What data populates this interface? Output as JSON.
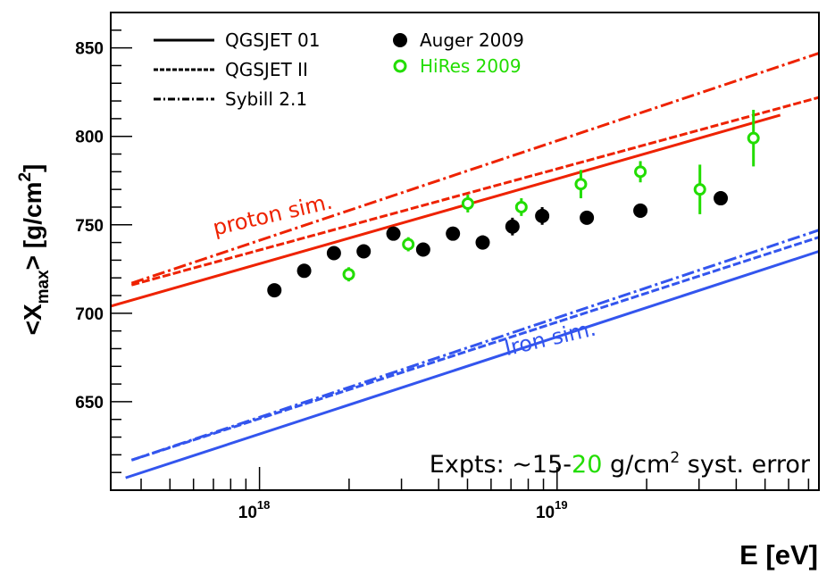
{
  "chart_data": {
    "type": "scatter",
    "title": "",
    "xlabel": "E [eV]",
    "ylabel_main": "<X",
    "ylabel_sub": "max",
    "ylabel_tail": "> [g/cm",
    "ylabel_sup": "2",
    "ylabel_end": "]",
    "x_scale": "log",
    "xlim_log10": [
      17.5,
      19.88
    ],
    "ylim": [
      600,
      870
    ],
    "y_ticks": [
      650,
      700,
      750,
      800,
      850
    ],
    "y_tick_labels": [
      "650",
      "700",
      "750",
      "800",
      "850"
    ],
    "x_major_ticks_log10": [
      18,
      19
    ],
    "x_tick_labels": [
      {
        "base": "10",
        "exp": "18"
      },
      {
        "base": "10",
        "exp": "19"
      }
    ],
    "grid": false,
    "legend": {
      "position": "top-left",
      "items": [
        {
          "label": "QGSJET 01",
          "style": "solid",
          "color": "#000000"
        },
        {
          "label": "QGSJET II",
          "style": "dashed",
          "color": "#000000"
        },
        {
          "label": "Sybill 2.1",
          "style": "dashdot",
          "color": "#000000"
        },
        {
          "label": "Auger 2009",
          "style": "filled-circle",
          "color": "#000000"
        },
        {
          "label": "HiRes 2009",
          "style": "open-circle",
          "color": "#22dd00"
        }
      ]
    },
    "lines": [
      {
        "name": "proton QGSJET 01",
        "group": "proton",
        "style": "solid",
        "color": "#ee2200",
        "x_log10": [
          17.5,
          19.75
        ],
        "y": [
          704,
          812
        ]
      },
      {
        "name": "proton QGSJET II",
        "group": "proton",
        "style": "dashed",
        "color": "#ee2200",
        "x_log10": [
          17.57,
          19.88
        ],
        "y": [
          716,
          822
        ]
      },
      {
        "name": "proton Sybill 2.1",
        "group": "proton",
        "style": "dashdot",
        "color": "#ee2200",
        "x_log10": [
          17.57,
          19.88
        ],
        "y": [
          717,
          847
        ]
      },
      {
        "name": "iron QGSJET 01",
        "group": "iron",
        "style": "solid",
        "color": "#3355ee",
        "x_log10": [
          17.55,
          19.88
        ],
        "y": [
          607,
          735
        ]
      },
      {
        "name": "iron QGSJET II",
        "group": "iron",
        "style": "dashed",
        "color": "#3355ee",
        "x_log10": [
          17.57,
          19.88
        ],
        "y": [
          617,
          743
        ]
      },
      {
        "name": "iron Sybill 2.1",
        "group": "iron",
        "style": "dashdot",
        "color": "#3355ee",
        "x_log10": [
          17.57,
          19.88
        ],
        "y": [
          617,
          747
        ]
      }
    ],
    "series": [
      {
        "name": "Auger 2009",
        "marker": "filled-circle",
        "color": "#000000",
        "x_log10": [
          18.05,
          18.15,
          18.25,
          18.35,
          18.45,
          18.55,
          18.65,
          18.75,
          18.85,
          18.95,
          19.1,
          19.28,
          19.55
        ],
        "y": [
          713,
          724,
          734,
          735,
          745,
          736,
          745,
          740,
          749,
          755,
          754,
          758,
          765
        ],
        "err": [
          0,
          0,
          0,
          0,
          0,
          0,
          0,
          4,
          5,
          5,
          0,
          4,
          4
        ]
      },
      {
        "name": "HiRes 2009",
        "marker": "open-circle",
        "color": "#22dd00",
        "x_log10": [
          18.3,
          18.5,
          18.7,
          18.88,
          19.08,
          19.28,
          19.48,
          19.66
        ],
        "y": [
          722,
          739,
          762,
          760,
          773,
          780,
          770,
          799
        ],
        "err": [
          4,
          4,
          5,
          5,
          8,
          6,
          14,
          16
        ]
      }
    ],
    "annotations": [
      {
        "text": "proton sim.",
        "color": "#ee2200",
        "x_log10": 17.85,
        "y": 744,
        "rotation_deg": -13
      },
      {
        "text": "Iron sim.",
        "color": "#3355ee",
        "x_log10": 18.83,
        "y": 676,
        "rotation_deg": -13
      }
    ],
    "footnote": {
      "prefix": "Expts: ~15-",
      "highlight": "20",
      "highlight_color": "#22dd00",
      "unit": " g/cm",
      "unit_sup": "2",
      "suffix": " syst. error"
    }
  }
}
